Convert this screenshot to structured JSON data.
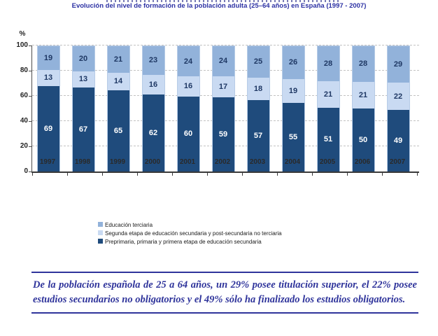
{
  "title": "Evolución del nivel de formación de la población adulta (25–64 años) en España (1997 - 2007)",
  "chart_data": {
    "type": "bar",
    "stacked": true,
    "categories": [
      "1997",
      "1998",
      "1999",
      "2000",
      "2001",
      "2002",
      "2003",
      "2004",
      "2005",
      "2006",
      "2007"
    ],
    "series": [
      {
        "name": "Preprimaria, primaria y primera etapa de educación secundaria",
        "color": "#1F4B7C",
        "label_color": "#FFFFFF",
        "values": [
          69,
          67,
          65,
          62,
          60,
          59,
          57,
          55,
          51,
          50,
          49
        ]
      },
      {
        "name": "Segunda etapa de educación secundaria y post-secundaria no terciaria",
        "color": "#C9DAF2",
        "label_color": "#1F3864",
        "values": [
          13,
          13,
          14,
          16,
          16,
          17,
          18,
          19,
          21,
          21,
          22
        ]
      },
      {
        "name": "Educación terciaria",
        "color": "#92B2DA",
        "label_color": "#1F3864",
        "values": [
          19,
          20,
          21,
          23,
          24,
          24,
          25,
          26,
          28,
          28,
          29
        ]
      }
    ],
    "ylabel": "%",
    "ylim": [
      0,
      100
    ],
    "yticks": [
      0,
      20,
      40,
      60,
      80,
      100
    ],
    "grid": "dashed-horizontal",
    "legend_position": "bottom-left",
    "legend_order_note": "top series listed first",
    "accent_navy": "#2F349B",
    "bar_border": "#B7CCE7"
  },
  "note": {
    "text": "De la población española de 25 a 64 años, un 29% posee titulación superior, el 22% posee estudios secundarios no obligatorios y el 49% sólo ha finalizado los estudios obligatorios."
  }
}
